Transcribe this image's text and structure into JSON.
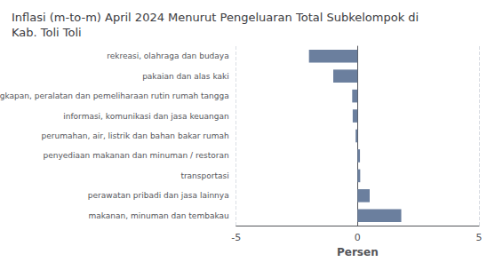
{
  "chart_data": {
    "type": "bar",
    "orientation": "horizontal",
    "title": "Inflasi (m-to-m) April 2024 Menurut Pengeluaran Total Subkelompok di\nKab. Toli Toli",
    "categories": [
      "rekreasi, olahraga dan budaya",
      "pakaian dan alas kaki",
      "perlengkapan, peralatan dan pemeliharaan rutin rumah tangga",
      "informasi, komunikasi dan jasa keuangan",
      "perumahan, air, listrik dan bahan bakar rumah",
      "penyediaan makanan dan minuman / restoran",
      "transportasi",
      "perawatan pribadi dan jasa lainnya",
      "makanan, minuman dan tembakau"
    ],
    "values": [
      -2.0,
      -1.0,
      -0.22,
      -0.2,
      -0.08,
      0.1,
      0.11,
      0.5,
      1.8
    ],
    "color": "#6b7f9e",
    "xlabel": "Persen",
    "xlim": [
      -5,
      5
    ],
    "xticks": [
      -5,
      0,
      5
    ],
    "grid": true
  }
}
